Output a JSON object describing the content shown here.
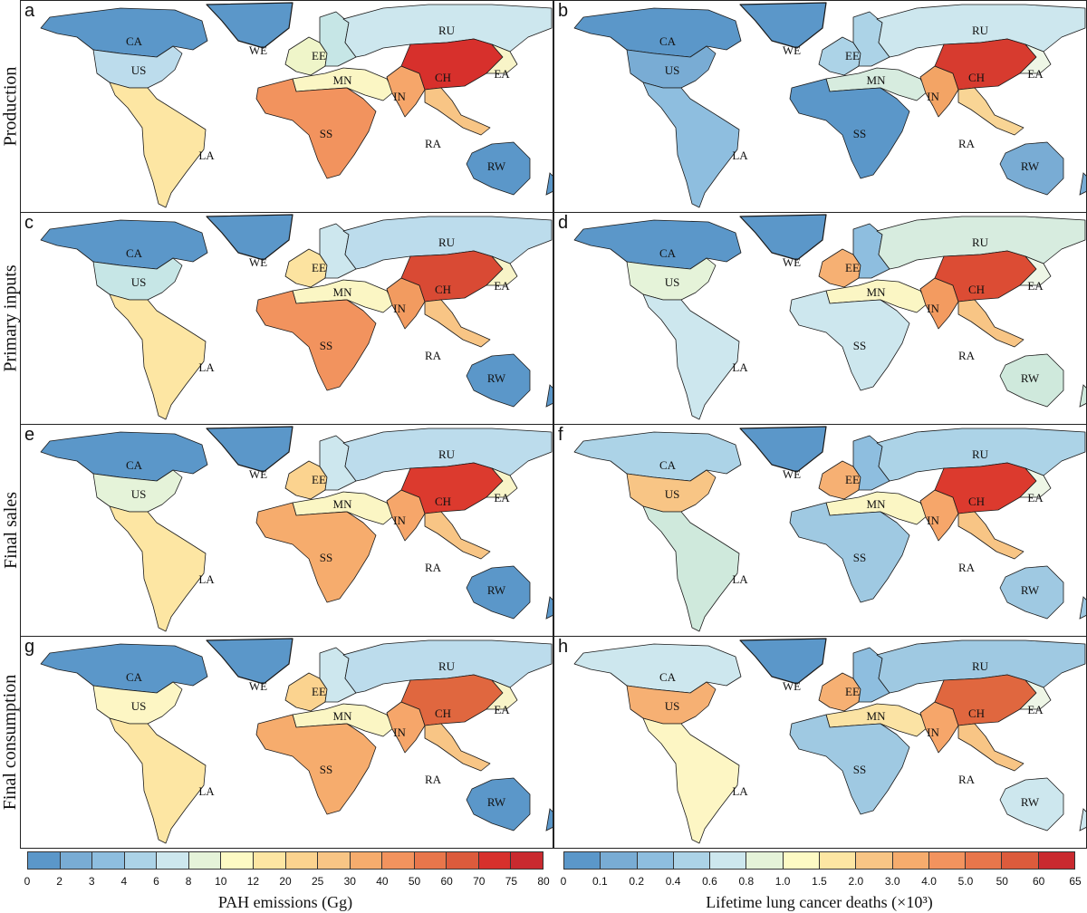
{
  "rows": [
    "Production",
    "Primary inputs",
    "Final sales",
    "Final consumption"
  ],
  "panels": [
    {
      "letter": "a",
      "metric": "emissions",
      "colors": {
        "CA": "#5b97c9",
        "US": "#bcdcec",
        "LA": "#fde6a3",
        "SS": "#f2935e",
        "WE": "#eff5c9",
        "EE": "#c6e6e6",
        "MN": "#fbf6c4",
        "RU": "#cde7ee",
        "CH": "#d7302c",
        "IN": "#f6a66a",
        "RA": "#f8c585",
        "EA": "#f8f4c8",
        "RW": "#5b97c9"
      }
    },
    {
      "letter": "b",
      "metric": "deaths",
      "colors": {
        "CA": "#5b97c9",
        "US": "#79acd4",
        "LA": "#8ebedf",
        "SS": "#5b97c9",
        "WE": "#acd3e7",
        "EE": "#acd3e7",
        "MN": "#d7ecdf",
        "RU": "#cde7ee",
        "CH": "#d73b2f",
        "IN": "#f3a465",
        "RA": "#f9d595",
        "EA": "#eef6e6",
        "RW": "#79acd4"
      }
    },
    {
      "letter": "c",
      "metric": "emissions",
      "colors": {
        "CA": "#5b97c9",
        "US": "#c6e6e6",
        "LA": "#fde6a3",
        "SS": "#f2935e",
        "WE": "#fce3a0",
        "EE": "#cde7ee",
        "MN": "#fbf6c4",
        "RU": "#bcdcec",
        "CH": "#d94a34",
        "IN": "#f29b60",
        "RA": "#f8c585",
        "EA": "#f8f4c8",
        "RW": "#5b97c9"
      }
    },
    {
      "letter": "d",
      "metric": "deaths",
      "colors": {
        "CA": "#5b97c9",
        "US": "#e5f3d9",
        "LA": "#cde7ee",
        "SS": "#cde7ee",
        "WE": "#f6b073",
        "EE": "#8ebedf",
        "MN": "#fbf6c4",
        "RU": "#d7ecdf",
        "CH": "#dc4c34",
        "IN": "#f39b60",
        "RA": "#f8c585",
        "EA": "#eef6e6",
        "RW": "#cfe9dc"
      }
    },
    {
      "letter": "e",
      "metric": "emissions",
      "colors": {
        "CA": "#5b97c9",
        "US": "#e5f3d9",
        "LA": "#fde6a3",
        "SS": "#f6ac6d",
        "WE": "#fbd38f",
        "EE": "#cde7ee",
        "MN": "#fbf6c4",
        "RU": "#bcdcec",
        "CH": "#dc3a2e",
        "IN": "#f6a66a",
        "RA": "#f8c585",
        "EA": "#f8f4c8",
        "RW": "#5b97c9"
      }
    },
    {
      "letter": "f",
      "metric": "deaths",
      "colors": {
        "CA": "#acd3e7",
        "US": "#f8c585",
        "LA": "#cfe9dc",
        "SS": "#9fc9e2",
        "WE": "#f6b073",
        "EE": "#8ebedf",
        "MN": "#fbf6c4",
        "RU": "#acd3e7",
        "CH": "#dc3a2e",
        "IN": "#f6a66a",
        "RA": "#f8c585",
        "EA": "#eef6e6",
        "RW": "#9fc9e2"
      }
    },
    {
      "letter": "g",
      "metric": "emissions",
      "colors": {
        "CA": "#5b97c9",
        "US": "#fdf6c4",
        "LA": "#fde6a3",
        "SS": "#f6ac6d",
        "WE": "#fbd38f",
        "EE": "#cde7ee",
        "MN": "#fbf6c4",
        "RU": "#bcdcec",
        "CH": "#e0673f",
        "IN": "#f6a66a",
        "RA": "#f8c585",
        "EA": "#f8f4c8",
        "RW": "#5b97c9"
      }
    },
    {
      "letter": "h",
      "metric": "deaths",
      "colors": {
        "CA": "#cde7ee",
        "US": "#f6b073",
        "LA": "#fdf6c4",
        "SS": "#9fc9e2",
        "WE": "#f6b073",
        "EE": "#8ebedf",
        "MN": "#fbe3a4",
        "RU": "#9fc9e2",
        "CH": "#e0673f",
        "IN": "#f6a66a",
        "RA": "#f8c585",
        "EA": "#eef6e6",
        "RW": "#cde7ee"
      }
    }
  ],
  "legend_emissions": {
    "title": "PAH emissions (Gg)",
    "ticks": [
      "0",
      "2",
      "3",
      "4",
      "6",
      "8",
      "10",
      "12",
      "20",
      "25",
      "30",
      "40",
      "50",
      "60",
      "70",
      "75",
      "80"
    ],
    "colors": [
      "#5b97c9",
      "#79acd4",
      "#8ebedf",
      "#acd3e7",
      "#cde7ee",
      "#e5f3d9",
      "#fdfac4",
      "#fde6a3",
      "#fbd38f",
      "#f8c585",
      "#f6ac6d",
      "#f2935e",
      "#e8764b",
      "#dc5b3c",
      "#d7302c",
      "#c92a2f"
    ]
  },
  "legend_deaths": {
    "title": "Lifetime lung cancer deaths (×10³)",
    "ticks": [
      "0",
      "0.1",
      "0.2",
      "0.4",
      "0.6",
      "0.8",
      "1.0",
      "1.5",
      "2.0",
      "3.0",
      "4.0",
      "5.0",
      "50",
      "60",
      "65"
    ],
    "colors": [
      "#5b97c9",
      "#79acd4",
      "#8ebedf",
      "#acd3e7",
      "#cde7ee",
      "#e5f3d9",
      "#fdfac4",
      "#fde6a3",
      "#f8c585",
      "#f6ac6d",
      "#f2935e",
      "#e8764b",
      "#dc5b3c",
      "#c92a2f"
    ]
  },
  "region_labels": [
    "CA",
    "US",
    "LA",
    "SS",
    "WE",
    "EE",
    "MN",
    "RU",
    "CH",
    "IN",
    "RA",
    "EA",
    "RW"
  ],
  "greenland_color": "#5b97c9"
}
